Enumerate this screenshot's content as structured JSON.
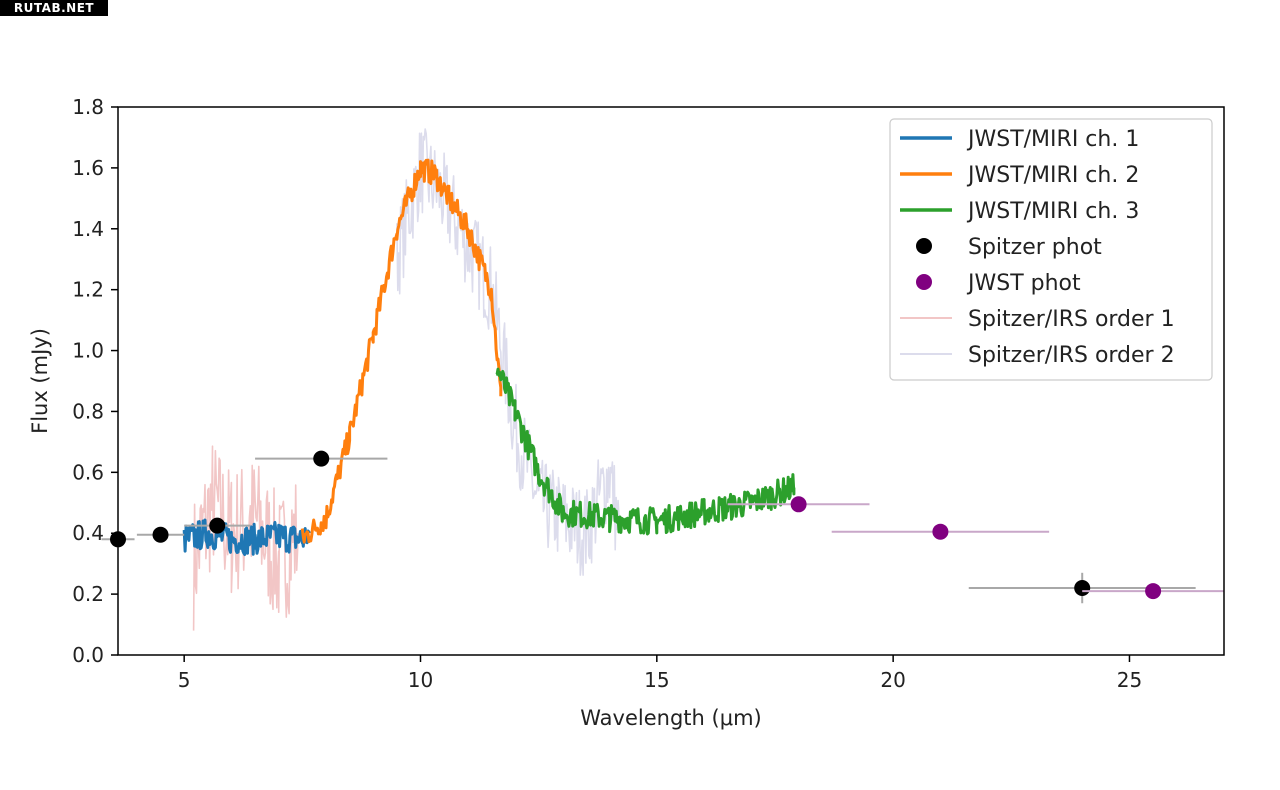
{
  "watermark": "RUTAB.NET",
  "colors": {
    "ch1": "#1f77b4",
    "ch2": "#ff7f0e",
    "ch3": "#2ca02c",
    "spitzer_phot": "#000000",
    "jwst_phot": "#800080",
    "irs1": "#f2c6c6",
    "irs2": "#dcdcec"
  },
  "chart_data": {
    "type": "line",
    "xlabel": "Wavelength (μm)",
    "ylabel": "Flux (mJy)",
    "xlim": [
      3.6,
      27.0
    ],
    "ylim": [
      0.0,
      1.8
    ],
    "xticks": [
      5,
      10,
      15,
      20,
      25
    ],
    "yticks": [
      0.0,
      0.2,
      0.4,
      0.6,
      0.8,
      1.0,
      1.2,
      1.4,
      1.6,
      1.8
    ],
    "ytick_labels": [
      "0.0",
      "0.2",
      "0.4",
      "0.6",
      "0.8",
      "1.0",
      "1.2",
      "1.4",
      "1.6",
      "1.8"
    ],
    "legend_position": "top-right",
    "series": [
      {
        "name": "JWST/MIRI ch. 1",
        "kind": "noisy-line",
        "color_key": "ch1",
        "noise": 0.05,
        "points": [
          [
            5.0,
            0.38
          ],
          [
            5.5,
            0.4
          ],
          [
            6.0,
            0.38
          ],
          [
            6.5,
            0.38
          ],
          [
            7.0,
            0.39
          ],
          [
            7.5,
            0.38
          ],
          [
            7.65,
            0.4
          ]
        ]
      },
      {
        "name": "JWST/MIRI ch. 2",
        "kind": "noisy-line",
        "color_key": "ch2",
        "noise": 0.04,
        "points": [
          [
            7.5,
            0.38
          ],
          [
            8.0,
            0.45
          ],
          [
            8.5,
            0.72
          ],
          [
            9.0,
            1.05
          ],
          [
            9.5,
            1.4
          ],
          [
            10.0,
            1.6
          ],
          [
            10.3,
            1.58
          ],
          [
            10.6,
            1.5
          ],
          [
            11.0,
            1.4
          ],
          [
            11.5,
            1.2
          ],
          [
            11.7,
            0.85
          ]
        ]
      },
      {
        "name": "JWST/MIRI ch. 3",
        "kind": "noisy-line",
        "color_key": "ch3",
        "noise": 0.045,
        "points": [
          [
            11.6,
            0.95
          ],
          [
            12.0,
            0.8
          ],
          [
            12.5,
            0.6
          ],
          [
            13.0,
            0.47
          ],
          [
            14.0,
            0.45
          ],
          [
            15.0,
            0.44
          ],
          [
            16.0,
            0.47
          ],
          [
            17.0,
            0.5
          ],
          [
            17.9,
            0.55
          ]
        ]
      },
      {
        "name": "Spitzer phot",
        "kind": "points",
        "color_key": "spitzer_phot",
        "points": [
          [
            3.6,
            0.38
          ],
          [
            4.5,
            0.395
          ],
          [
            5.7,
            0.425
          ],
          [
            7.9,
            0.645
          ],
          [
            24.0,
            0.22
          ]
        ],
        "xerr": [
          0.35,
          0.5,
          0.7,
          1.4,
          2.4
        ],
        "yerr": [
          0.0,
          0.0,
          0.0,
          0.0,
          0.05
        ]
      },
      {
        "name": "JWST phot",
        "kind": "points",
        "color_key": "jwst_phot",
        "points": [
          [
            18.0,
            0.495
          ],
          [
            21.0,
            0.405
          ],
          [
            25.5,
            0.21
          ]
        ],
        "xerr": [
          1.5,
          2.3,
          1.5
        ],
        "yerr": [
          0.0,
          0.0,
          0.0
        ]
      },
      {
        "name": "Spitzer/IRS order 1",
        "kind": "noisy-line",
        "color_key": "irs1",
        "noise": 0.22,
        "points": [
          [
            5.2,
            0.3
          ],
          [
            5.6,
            0.5
          ],
          [
            6.0,
            0.4
          ],
          [
            6.5,
            0.45
          ],
          [
            7.0,
            0.3
          ],
          [
            7.4,
            0.4
          ]
        ]
      },
      {
        "name": "Spitzer/IRS order 2",
        "kind": "noisy-line",
        "color_key": "irs2",
        "noise": 0.15,
        "points": [
          [
            9.5,
            1.3
          ],
          [
            10.0,
            1.6
          ],
          [
            10.5,
            1.5
          ],
          [
            11.0,
            1.35
          ],
          [
            11.5,
            1.2
          ],
          [
            12.0,
            0.75
          ],
          [
            12.5,
            0.5
          ],
          [
            13.0,
            0.45
          ],
          [
            13.5,
            0.4
          ],
          [
            14.0,
            0.6
          ],
          [
            14.2,
            0.4
          ]
        ]
      }
    ]
  }
}
